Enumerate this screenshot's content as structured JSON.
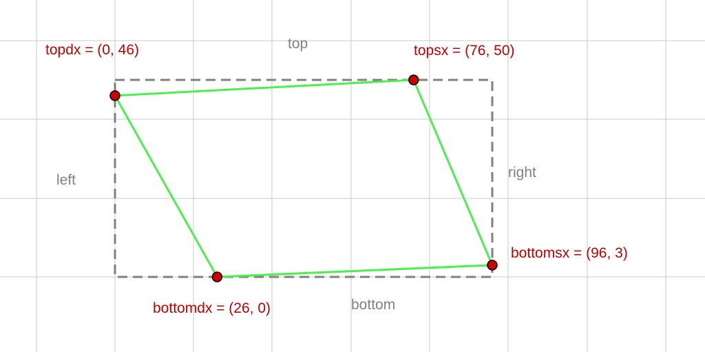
{
  "colors": {
    "background": "#ffffff",
    "grid": "#c8c8c8",
    "bounding_box": "#808080",
    "quad_outline": "#4cf04c",
    "point_fill": "#cc0000",
    "point_stroke": "#000000",
    "point_label": "#c00000",
    "side_label": "#808080"
  },
  "side_labels": {
    "top": "top",
    "left": "left",
    "right": "right",
    "bottom": "bottom"
  },
  "points": {
    "topdx": {
      "name": "topdx",
      "x": 0,
      "y": 46,
      "label": "topdx = (0, 46)"
    },
    "topsx": {
      "name": "topsx",
      "x": 76,
      "y": 50,
      "label": "topsx = (76, 50)"
    },
    "bottomsx": {
      "name": "bottomsx",
      "x": 96,
      "y": 3,
      "label": "bottomsx = (96, 3)"
    },
    "bottomdx": {
      "name": "bottomdx",
      "x": 26,
      "y": 0,
      "label": "bottomdx = (26, 0)"
    }
  },
  "quad_order": [
    "topdx",
    "topsx",
    "bottomsx",
    "bottomdx"
  ]
}
